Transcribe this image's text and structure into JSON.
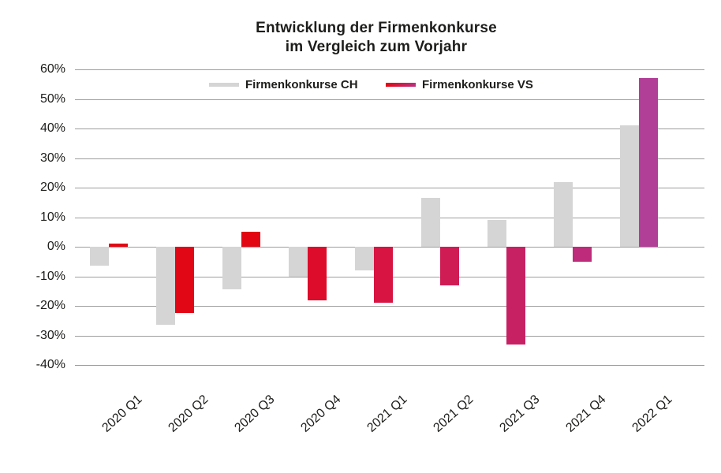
{
  "title": {
    "line1": "Entwicklung der Firmenkonkurse",
    "line2": "im Vergleich zum Vorjahr"
  },
  "legend": {
    "ch": {
      "label": "Firmenkonkurse CH",
      "color": "#d5d5d5"
    },
    "vs": {
      "label": "Firmenkonkurse VS",
      "color_start": "#e30613",
      "color_end": "#bb3080"
    }
  },
  "colors": {
    "gridline": "#9e9e9e",
    "text": "#1d1d1b",
    "background": "#ffffff"
  },
  "chart_data": {
    "type": "bar",
    "title": "Entwicklung der Firmenkonkurse im Vergleich zum Vorjahr",
    "xlabel": "",
    "ylabel": "",
    "ylim": [
      -40,
      60
    ],
    "ytick_step": 10,
    "ytick_labels": [
      "60%",
      "50%",
      "40%",
      "30%",
      "20%",
      "10%",
      "0%",
      "-10%",
      "-20%",
      "-30%",
      "-40%"
    ],
    "grid": true,
    "legend_position": "top",
    "categories": [
      "2020 Q1",
      "2020 Q2",
      "2020 Q3",
      "2020 Q4",
      "2021 Q1",
      "2021 Q2",
      "2021 Q3",
      "2021 Q4",
      "2022 Q1"
    ],
    "series": [
      {
        "name": "Firmenkonkurse CH",
        "color": "#d5d5d5",
        "values": [
          -6.5,
          -26.5,
          -14.5,
          -10,
          -8,
          16.5,
          9,
          22,
          41
        ]
      },
      {
        "name": "Firmenkonkurse VS",
        "colors": [
          "#e30613",
          "#e20715",
          "#e20613",
          "#de0c2b",
          "#d71442",
          "#d01c55",
          "#c72164",
          "#bd2b7a",
          "#b23f97"
        ],
        "values": [
          1,
          -22.5,
          5,
          -18,
          -19,
          -13,
          -33,
          -5,
          57
        ]
      }
    ]
  }
}
